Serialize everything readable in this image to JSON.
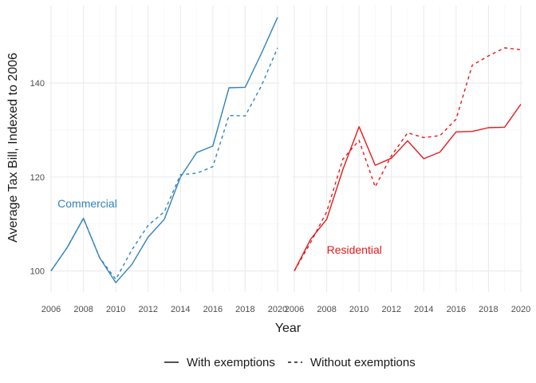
{
  "chart_data": {
    "type": "line",
    "ylabel": "Average Tax Bill, Indexed to 2006",
    "xlabel": "Year",
    "x": [
      2006,
      2007,
      2008,
      2009,
      2010,
      2011,
      2012,
      2013,
      2014,
      2015,
      2016,
      2017,
      2018,
      2019,
      2020
    ],
    "xticks": [
      2006,
      2008,
      2010,
      2012,
      2014,
      2016,
      2018,
      2020
    ],
    "xlim": [
      2005.9,
      2020.1
    ],
    "yticks": [
      100,
      120,
      140
    ],
    "ylim": [
      95.5,
      156.5
    ],
    "grid": true,
    "legend_position": "bottom",
    "legend": [
      {
        "label": "With exemptions",
        "linetype": "solid"
      },
      {
        "label": "Without exemptions",
        "linetype": "dashed"
      }
    ],
    "panels": [
      {
        "label": "Commercial",
        "color": "#3182bd",
        "label_at": [
          2006.4,
          114.4
        ],
        "series": [
          {
            "name": "With exemptions",
            "linetype": "solid",
            "values": [
              100,
              105,
              111.2,
              102.8,
              97.5,
              101.4,
              107.2,
              111,
              120,
              125.2,
              126.6,
              139,
              139.1,
              146.3,
              154
            ]
          },
          {
            "name": "Without exemptions",
            "linetype": "dashed",
            "values": [
              100,
              105,
              111.2,
              102.8,
              98.2,
              104.5,
              109.7,
              112.6,
              120.5,
              120.8,
              122.2,
              133.1,
              133,
              139.4,
              147.5
            ]
          }
        ]
      },
      {
        "label": "Residential",
        "color": "#e41a1c",
        "label_at": [
          2008,
          104.5
        ],
        "series": [
          {
            "name": "With exemptions",
            "linetype": "solid",
            "values": [
              100,
              106.7,
              111,
              121.6,
              130.7,
              122.5,
              124,
              127.7,
              123.9,
              125.3,
              129.6,
              129.7,
              130.5,
              130.6,
              135.5
            ]
          },
          {
            "name": "Without exemptions",
            "linetype": "dashed",
            "values": [
              100,
              106,
              112.6,
              123.8,
              127.8,
              117.9,
              124.5,
              129.4,
              128.4,
              128.8,
              132.3,
              143.8,
              145.8,
              147.5,
              147.1
            ]
          }
        ]
      }
    ]
  }
}
